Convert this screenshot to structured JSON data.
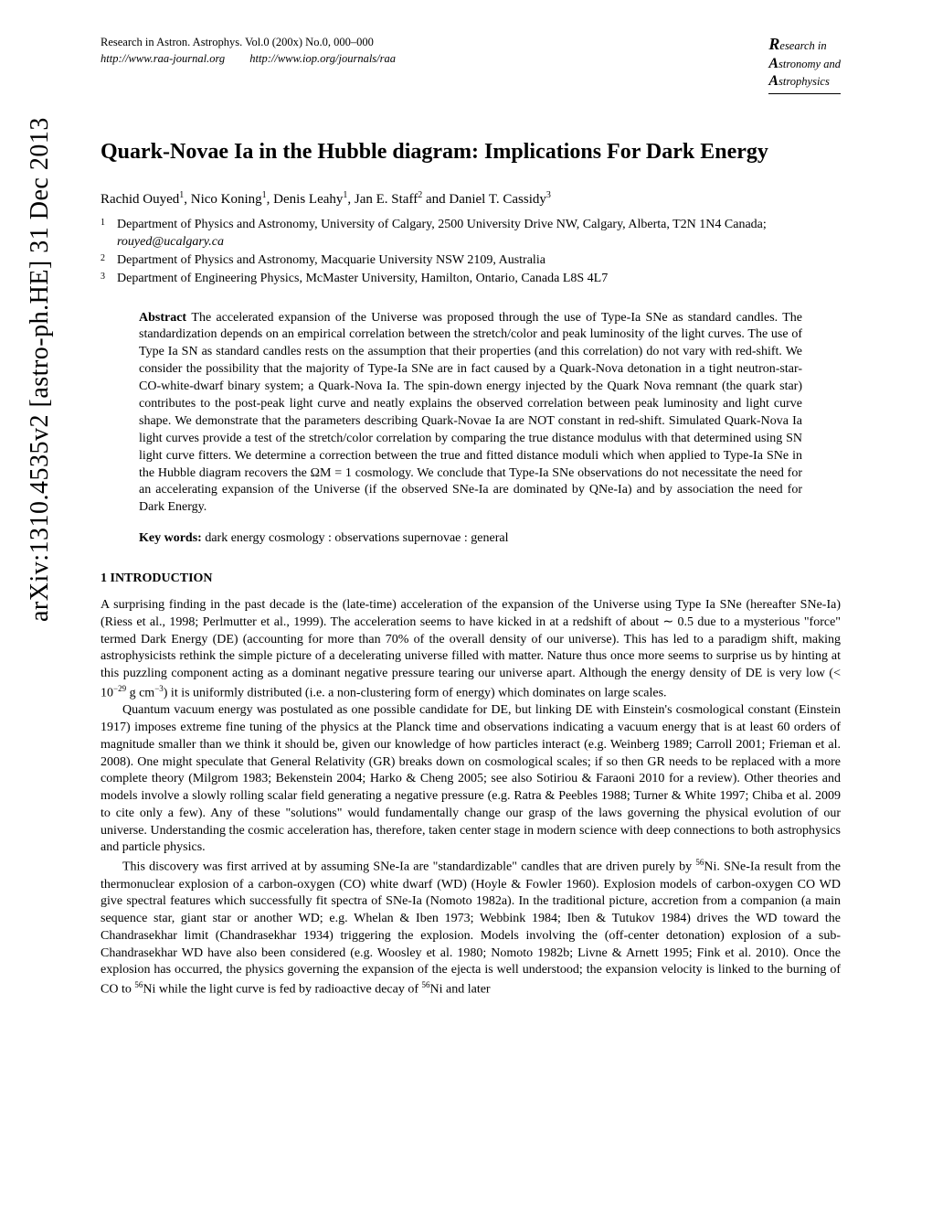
{
  "arxiv": "arXiv:1310.4535v2  [astro-ph.HE]  31 Dec 2013",
  "header": {
    "journal_line": "Research in Astron. Astrophys. Vol.0 (200x) No.0, 000–000",
    "url1": "http://www.raa-journal.org",
    "url2": "http://www.iop.org/journals/raa",
    "brand_r": "R",
    "brand_research": "esearch in",
    "brand_a1": "A",
    "brand_astronomy": "stronomy and",
    "brand_a2": "A",
    "brand_astrophysics": "strophysics"
  },
  "title": "Quark-Novae Ia in the Hubble diagram: Implications For Dark Energy",
  "authors": {
    "a1": "Rachid Ouyed",
    "s1": "1",
    "a2": "Nico Koning",
    "s2": "1",
    "a3": "Denis Leahy",
    "s3": "1",
    "a4": "Jan E. Staff",
    "s4": "2",
    "and": " and ",
    "a5": "Daniel T. Cassidy",
    "s5": "3"
  },
  "affiliations": {
    "n1": "1",
    "t1a": "Department of Physics and Astronomy, University of Calgary, 2500 University Drive NW, Calgary, Alberta, T2N 1N4 Canada; ",
    "t1email": "rouyed@ucalgary.ca",
    "n2": "2",
    "t2": "Department of Physics and Astronomy, Macquarie University NSW 2109, Australia",
    "n3": "3",
    "t3": "Department of Engineering Physics, McMaster University, Hamilton, Ontario, Canada L8S 4L7"
  },
  "abstract": {
    "label": "Abstract ",
    "text": "The accelerated expansion of the Universe was proposed through the use of Type-Ia SNe as standard candles. The standardization depends on an empirical correlation between the stretch/color and peak luminosity of the light curves. The use of Type Ia SN as standard candles rests on the assumption that their properties (and this correlation) do not vary with red-shift. We consider the possibility that the majority of Type-Ia SNe are in fact caused by a Quark-Nova detonation in a tight neutron-star-CO-white-dwarf binary system; a Quark-Nova Ia. The spin-down energy injected by the Quark Nova remnant (the quark star) contributes to the post-peak light curve and neatly explains the observed correlation between peak luminosity and light curve shape. We demonstrate that the parameters describing Quark-Novae Ia are NOT constant in red-shift. Simulated Quark-Nova Ia light curves provide a test of the stretch/color correlation by comparing the true distance modulus with that determined using SN light curve fitters. We determine a correction between the true and fitted distance moduli which when applied to Type-Ia SNe in the Hubble diagram recovers the ΩM = 1 cosmology. We conclude that Type-Ia SNe observations do not necessitate the need for an accelerating expansion of the Universe (if the observed SNe-Ia are dominated by QNe-Ia) and by association the need for Dark Energy."
  },
  "keywords": {
    "label": "Key words: ",
    "text": "dark energy   cosmology : observations   supernovae : general"
  },
  "section1": {
    "heading": "1 INTRODUCTION",
    "p1a": "A surprising finding in the past decade is the (late-time) acceleration of the expansion of the Universe using Type Ia SNe (hereafter SNe-Ia) (Riess et al., 1998; Perlmutter et al., 1999). The acceleration seems to have kicked in at a redshift of about ∼ 0.5 due to a mysterious \"force\" termed Dark Energy (DE) (accounting for more than 70% of the overall density of our universe). This has led to a paradigm shift, making astrophysicists rethink the simple picture of a decelerating universe filled with matter. Nature thus once more seems to surprise us by hinting at this puzzling component acting as a dominant negative pressure tearing our universe apart. Although the energy density of DE is very low (< 10",
    "p1exp": "−29",
    "p1b": " g cm",
    "p1exp2": "−3",
    "p1c": ") it is uniformly distributed (i.e. a non-clustering form of energy) which dominates on large scales.",
    "p2": "Quantum vacuum energy was postulated as one possible candidate for DE, but linking DE with Einstein's cosmological constant (Einstein 1917) imposes extreme fine tuning of the physics at the Planck time and observations indicating a vacuum energy that is at least 60 orders of magnitude smaller than we think it should be, given our knowledge of how particles interact (e.g. Weinberg 1989; Carroll 2001; Frieman et al. 2008). One might speculate that General Relativity (GR) breaks down on cosmological scales; if so then GR needs to be replaced with a more complete theory (Milgrom 1983; Bekenstein 2004; Harko & Cheng 2005; see also Sotiriou & Faraoni 2010 for a review). Other theories and models involve a slowly rolling scalar field generating a negative pressure (e.g. Ratra & Peebles 1988; Turner & White 1997; Chiba et al. 2009 to cite only a few). Any of these \"solutions\" would fundamentally change our grasp of the laws governing the physical evolution of our universe. Understanding the cosmic acceleration has, therefore, taken center stage in modern science with deep connections to both astrophysics and particle physics.",
    "p3a": "This discovery was first arrived at by assuming SNe-Ia are \"standardizable\" candles that are driven purely by ",
    "p3sup1": "56",
    "p3b": "Ni. SNe-Ia result from the thermonuclear explosion of a carbon-oxygen (CO) white dwarf (WD) (Hoyle & Fowler 1960). Explosion models of carbon-oxygen CO WD give spectral features which successfully fit spectra of SNe-Ia (Nomoto 1982a). In the traditional picture, accretion from a companion (a main sequence star, giant star or another WD; e.g. Whelan & Iben 1973; Webbink 1984; Iben & Tutukov 1984) drives the WD toward the Chandrasekhar limit (Chandrasekhar 1934) triggering the explosion. Models involving the (off-center detonation) explosion of a sub-Chandrasekhar WD have also been considered (e.g. Woosley et al. 1980; Nomoto 1982b; Livne & Arnett 1995; Fink et al. 2010). Once the explosion has occurred, the physics governing the expansion of the ejecta is well understood; the expansion velocity is linked to the burning of CO to ",
    "p3sup2": "56",
    "p3c": "Ni while the light curve is fed by radioactive decay of ",
    "p3sup3": "56",
    "p3d": "Ni and later"
  }
}
